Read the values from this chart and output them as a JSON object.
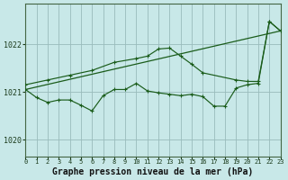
{
  "background_color": "#c8e8e8",
  "grid_color": "#99bbbb",
  "line_color": "#1a5c1a",
  "xlabel": "Graphe pression niveau de la mer (hPa)",
  "xlabel_fontsize": 7.0,
  "xlim": [
    0,
    23
  ],
  "ylim": [
    1019.65,
    1022.85
  ],
  "yticks": [
    1020,
    1021,
    1022
  ],
  "xticks": [
    0,
    1,
    2,
    3,
    4,
    5,
    6,
    7,
    8,
    9,
    10,
    11,
    12,
    13,
    14,
    15,
    16,
    17,
    18,
    19,
    20,
    21,
    22,
    23
  ],
  "trend_x": [
    0,
    23
  ],
  "trend_y": [
    1021.05,
    1022.28
  ],
  "smooth_x": [
    0,
    2,
    4,
    6,
    8,
    10,
    11,
    12,
    13,
    14,
    15,
    16,
    19,
    20,
    21,
    22,
    23
  ],
  "smooth_y": [
    1021.15,
    1021.25,
    1021.35,
    1021.45,
    1021.62,
    1021.7,
    1021.75,
    1021.9,
    1021.92,
    1021.75,
    1021.58,
    1021.4,
    1021.25,
    1021.22,
    1021.22,
    1022.48,
    1022.28
  ],
  "jagged_x": [
    0,
    1,
    2,
    3,
    4,
    5,
    6,
    7,
    8,
    9,
    10,
    11,
    12,
    13,
    14,
    15,
    16,
    17,
    18,
    19,
    20,
    21,
    22,
    23
  ],
  "jagged_y": [
    1021.05,
    1020.88,
    1020.78,
    1020.83,
    1020.83,
    1020.72,
    1020.6,
    1020.92,
    1021.05,
    1021.05,
    1021.18,
    1021.02,
    1020.98,
    1020.95,
    1020.92,
    1020.95,
    1020.9,
    1020.7,
    1020.7,
    1021.08,
    1021.15,
    1021.18,
    1022.48,
    1022.28
  ]
}
